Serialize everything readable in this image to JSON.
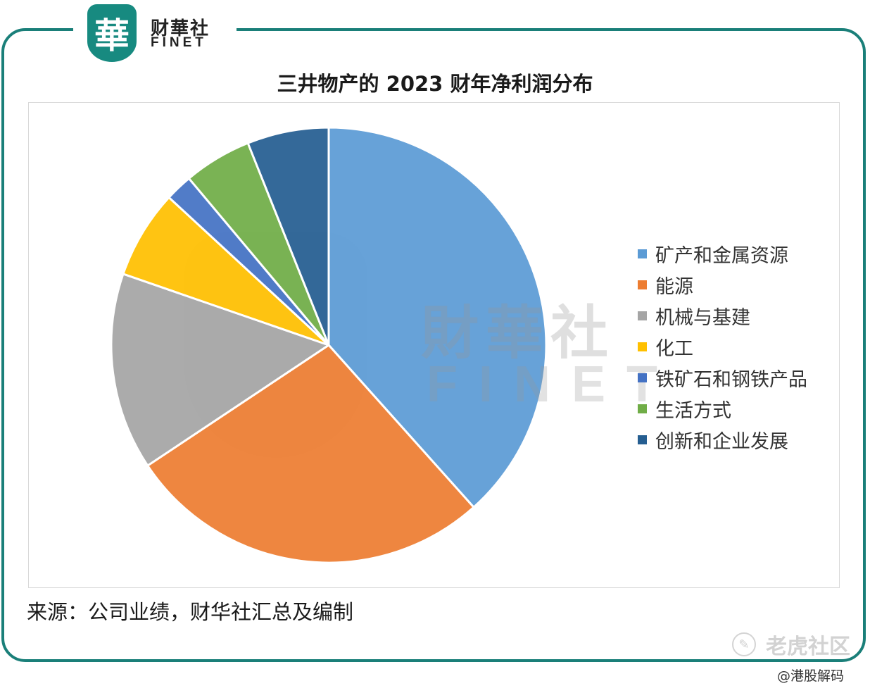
{
  "logo": {
    "glyph": "華",
    "cn": "财華社",
    "en": "FINET"
  },
  "colors": {
    "frame": "#1a7f79",
    "badge": "#178a80"
  },
  "chart_data": {
    "type": "pie",
    "title": "三井物产的 2023 财年净利润分布",
    "slices": [
      {
        "label": "矿产和金属资源",
        "value": 38.0,
        "color": "#5b9bd5"
      },
      {
        "label": "能源",
        "value": 27.0,
        "color": "#ed7d31"
      },
      {
        "label": "机械与基建",
        "value": 14.5,
        "color": "#a5a5a5"
      },
      {
        "label": "化工",
        "value": 6.5,
        "color": "#ffc000"
      },
      {
        "label": "铁矿石和钢铁产品",
        "value": 2.0,
        "color": "#4472c4"
      },
      {
        "label": "生活方式",
        "value": 5.0,
        "color": "#70ad47"
      },
      {
        "label": "创新和企业发展",
        "value": 6.0,
        "color": "#255e91"
      }
    ],
    "start_angle_deg": 0,
    "direction": "clockwise",
    "legend_position": "right"
  },
  "watermark": {
    "cn": "財華社",
    "en": "FINET",
    "glyph": "華"
  },
  "source_note": "来源：公司业绩，财华社汇总及编制",
  "footer": {
    "platform": "老虎社区",
    "author": "@港股解码",
    "platform_icon": "tiger-logo-icon"
  }
}
